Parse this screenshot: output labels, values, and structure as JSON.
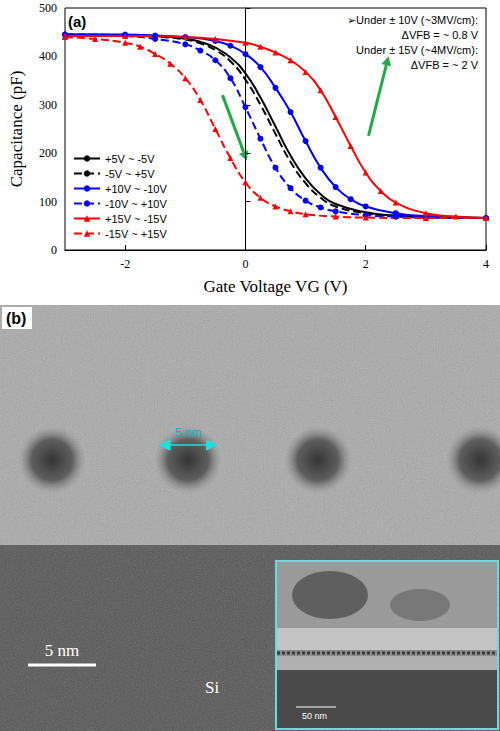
{
  "chart_data": {
    "type": "line",
    "title": "(a)",
    "x_label": "Gate Voltage VG (V)",
    "y_label": "Capacitance (pF)",
    "xlim": [
      -3,
      4
    ],
    "xticks": [
      -2,
      0,
      2,
      4
    ],
    "ylim": [
      0,
      500
    ],
    "yticks": [
      0,
      100,
      200,
      300,
      400,
      500
    ],
    "grid": false,
    "legend": "bottom-left",
    "annotations": [
      "➢Under ± 10V (~3MV/cm):",
      "ΔVFB = ~ 0.8 V",
      "Under ± 15V (~4MV/cm):",
      "ΔVFB = ~ 2 V"
    ],
    "series": [
      {
        "name": "+5V ~ -5V",
        "color": "#000000",
        "marker": "none",
        "line_style": "solid",
        "x": [
          -3,
          -2,
          -1.5,
          -1,
          -0.75,
          -0.5,
          -0.25,
          0,
          0.25,
          0.5,
          0.75,
          1,
          1.25,
          1.5,
          2,
          2.5,
          3.5,
          4
        ],
        "values": [
          445,
          444,
          442,
          437,
          430,
          418,
          398,
          365,
          315,
          255,
          195,
          148,
          115,
          95,
          78,
          71,
          67,
          66
        ]
      },
      {
        "name": "-5V ~ +5V",
        "color": "#000000",
        "marker": "none",
        "line_style": "dashed",
        "x": [
          -3,
          -2,
          -1.5,
          -1,
          -0.75,
          -0.5,
          -0.25,
          0,
          0.25,
          0.5,
          0.75,
          1,
          1.25,
          1.5,
          2,
          2.5,
          3.5,
          4
        ],
        "values": [
          445,
          444,
          441,
          435,
          427,
          413,
          390,
          352,
          300,
          240,
          182,
          138,
          108,
          90,
          76,
          70,
          67,
          66
        ]
      },
      {
        "name": "+10V ~ -10V",
        "color": "#0000ff",
        "marker": "circle",
        "line_style": "solid",
        "x": [
          -3,
          -2,
          -1.5,
          -1,
          -0.5,
          -0.25,
          0,
          0.25,
          0.5,
          0.75,
          1,
          1.25,
          1.5,
          1.75,
          2,
          2.5,
          3,
          4
        ],
        "values": [
          445,
          445,
          443,
          440,
          432,
          422,
          405,
          378,
          335,
          285,
          225,
          170,
          130,
          105,
          90,
          76,
          70,
          66
        ]
      },
      {
        "name": "-10V ~ +10V",
        "color": "#0000ff",
        "marker": "circle",
        "line_style": "dashed",
        "x": [
          -3,
          -2,
          -1.5,
          -1,
          -0.75,
          -0.5,
          -0.25,
          0,
          0.25,
          0.5,
          0.75,
          1,
          1.25,
          1.5,
          2,
          2.5,
          3,
          4
        ],
        "values": [
          445,
          442,
          436,
          425,
          412,
          392,
          355,
          295,
          230,
          170,
          128,
          102,
          88,
          80,
          72,
          69,
          67,
          66
        ]
      },
      {
        "name": "+15V ~ -15V",
        "color": "#ff0000",
        "marker": "triangle",
        "line_style": "solid",
        "x": [
          -3,
          -2,
          -1,
          -0.5,
          0,
          0.25,
          0.5,
          0.75,
          1,
          1.25,
          1.5,
          1.75,
          2,
          2.25,
          2.5,
          3,
          3.5,
          4
        ],
        "values": [
          442,
          442,
          440,
          436,
          428,
          420,
          408,
          392,
          368,
          330,
          275,
          215,
          160,
          122,
          98,
          76,
          69,
          66
        ]
      },
      {
        "name": "-15V ~ +15V",
        "color": "#ff0000",
        "marker": "triangle",
        "line_style": "dashed",
        "x": [
          -3,
          -2.5,
          -2,
          -1.75,
          -1.5,
          -1.25,
          -1,
          -0.75,
          -0.5,
          -0.25,
          0,
          0.25,
          0.5,
          0.75,
          1,
          1.5,
          2,
          3,
          4
        ],
        "values": [
          440,
          436,
          428,
          420,
          405,
          385,
          355,
          310,
          250,
          190,
          140,
          108,
          90,
          80,
          74,
          69,
          67,
          66,
          66
        ]
      }
    ]
  },
  "image_panel": {
    "label": "(b)",
    "particle_label": "5 nm",
    "scale_bar": "5 nm",
    "substrate": "Si",
    "inset_scale_bar": "50 nm"
  }
}
